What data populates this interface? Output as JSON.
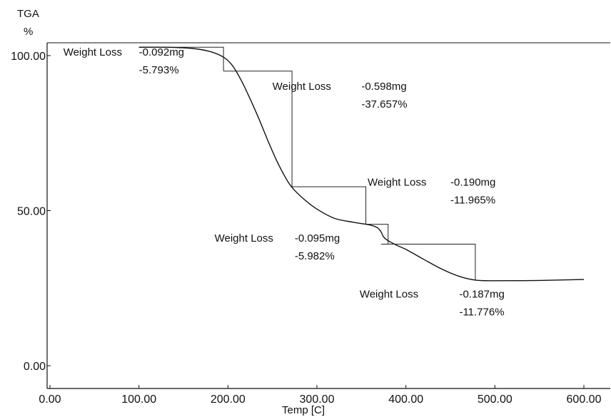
{
  "chart_data": {
    "type": "line",
    "y_title_line1": "TGA",
    "y_title_line2": "%",
    "xlabel": "Temp  [C]",
    "xlim": [
      0,
      600
    ],
    "ylim": [
      0,
      100
    ],
    "x_ticks": [
      0,
      100,
      200,
      300,
      400,
      500,
      600
    ],
    "x_tick_labels": [
      "0.00",
      "100.00",
      "200.00",
      "300.00",
      "400.00",
      "500.00",
      "600.00"
    ],
    "y_ticks": [
      0,
      50,
      100
    ],
    "y_tick_labels": [
      "0.00",
      "50.00",
      "100.00"
    ],
    "grid": false,
    "series": [
      {
        "x": [
          100,
          130,
          160,
          180,
          195,
          205,
          215,
          225,
          235,
          245,
          255,
          265,
          272,
          285,
          300,
          320,
          340,
          355,
          362,
          368,
          372,
          375,
          380,
          390,
          400,
          420,
          440,
          460,
          478,
          500,
          550,
          600
        ],
        "y": [
          102.7,
          102.7,
          102.3,
          101.3,
          99.5,
          96.8,
          92.0,
          86.0,
          79.5,
          72.5,
          66.0,
          60.5,
          57.5,
          53.8,
          50.5,
          47.5,
          46.3,
          45.6,
          45.2,
          44.5,
          43.2,
          41.5,
          40.3,
          38.8,
          37.5,
          34.3,
          31.2,
          28.8,
          27.6,
          27.4,
          27.5,
          27.8
        ]
      }
    ],
    "step_boxes": [
      {
        "x1": 195,
        "x2": 272,
        "y_top": 95.0,
        "y_bottom": 57.7
      },
      {
        "x1": 272,
        "x2": 355,
        "y_top": 57.7,
        "y_bottom": 45.6
      },
      {
        "x1": 372,
        "x2": 478,
        "y_top": 39.2,
        "y_bottom": 27.6
      }
    ],
    "small_boxes": [
      {
        "x1": 100,
        "x2": 195,
        "y_top": 102.7,
        "y_bottom": 95.0
      },
      {
        "x1": 355,
        "x2": 380,
        "y_top": 45.6,
        "y_bottom": 39.2
      }
    ],
    "annotations": [
      {
        "label": "Weight Loss",
        "mass": "-0.092mg",
        "pct": "-5.793%",
        "lx": 15,
        "mx": 100,
        "y": 100
      },
      {
        "label": "Weight Loss",
        "mass": "-0.598mg",
        "pct": "-37.657%",
        "lx": 250,
        "mx": 350,
        "y": 89
      },
      {
        "label": "Weight Loss",
        "mass": "-0.190mg",
        "pct": "-11.965%",
        "lx": 357,
        "mx": 450,
        "y": 58
      },
      {
        "label": "Weight Loss",
        "mass": "-0.095mg",
        "pct": "-5.982%",
        "lx": 185,
        "mx": 275,
        "y": 40
      },
      {
        "label": "Weight Loss",
        "mass": "-0.187mg",
        "pct": "-11.776%",
        "lx": 348,
        "mx": 460,
        "y": 22
      }
    ]
  }
}
